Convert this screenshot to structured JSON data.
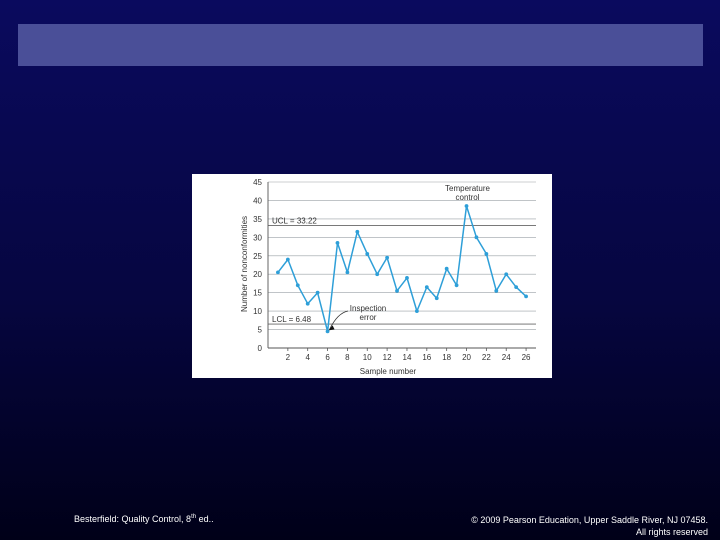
{
  "footer": {
    "left_text": "Besterfield: Quality Control, 8",
    "left_sup": "th",
    "left_suffix": " ed..",
    "right_line1": "© 2009 Pearson Education, Upper Saddle River, NJ 07458.",
    "right_line2": "All rights reserved"
  },
  "colors": {
    "title_bar": "#4a4f98",
    "series": "#2e9fd8",
    "grid": "#9aa0a6"
  },
  "chart_data": {
    "type": "line",
    "xlabel": "Sample number",
    "ylabel": "Number of nonconformities",
    "xlim": [
      0,
      27
    ],
    "ylim": [
      0,
      45
    ],
    "xticks": [
      2,
      4,
      6,
      8,
      10,
      12,
      14,
      16,
      18,
      20,
      22,
      24,
      26
    ],
    "xtick_labels": [
      "2",
      "4",
      "6",
      "8",
      "10",
      "12",
      "14",
      "16",
      "18",
      "20",
      "22",
      "24",
      "26"
    ],
    "yticks": [
      0,
      5,
      10,
      15,
      20,
      25,
      30,
      35,
      40,
      45
    ],
    "ytick_labels": [
      "0",
      "5",
      "10",
      "15",
      "20",
      "25",
      "30",
      "35",
      "40",
      "45"
    ],
    "grid": true,
    "x": [
      1,
      2,
      3,
      4,
      5,
      6,
      7,
      8,
      9,
      10,
      11,
      12,
      13,
      14,
      15,
      16,
      17,
      18,
      19,
      20,
      21,
      22,
      23,
      24,
      25,
      26
    ],
    "y": [
      20.5,
      24,
      17,
      12,
      15,
      4.5,
      28.5,
      20.5,
      31.5,
      25.5,
      20,
      24.5,
      15.5,
      19,
      10,
      16.5,
      13.5,
      21.5,
      17,
      38.5,
      30,
      25.5,
      15.5,
      20,
      16.5,
      14
    ],
    "ucl": {
      "value": 33.22,
      "label": "UCL = 33.22"
    },
    "lcl": {
      "value": 6.48,
      "label": "LCL = 6.48"
    },
    "annotations": [
      {
        "lines": [
          "Temperature",
          "control"
        ],
        "x": 20,
        "y": 38.5
      },
      {
        "lines": [
          "Inspection",
          "error"
        ],
        "x": 6,
        "y": 4.5
      }
    ]
  }
}
